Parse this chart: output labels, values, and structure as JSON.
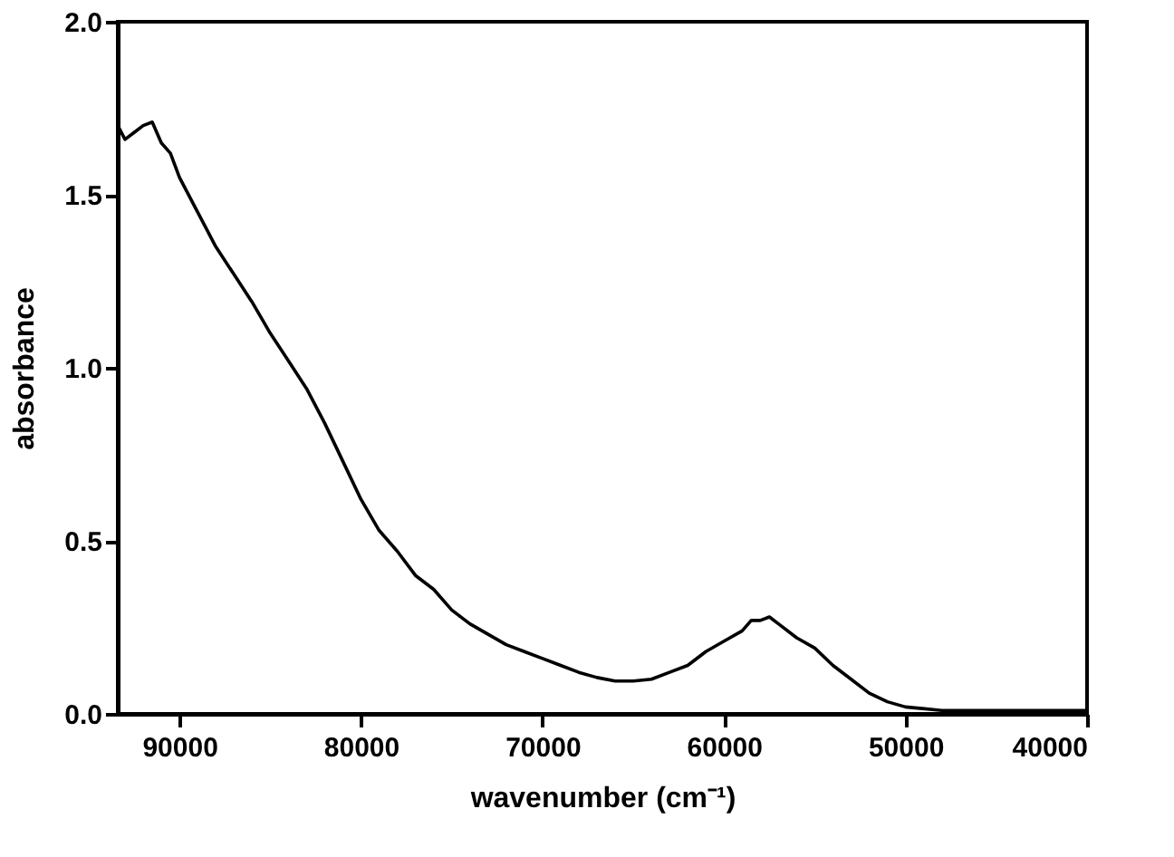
{
  "chart_data": {
    "type": "line",
    "xlabel": "wavenumber (cm⁻¹)",
    "ylabel": "absorbance",
    "x": [
      93400,
      93000,
      92500,
      92000,
      91500,
      91000,
      90500,
      90000,
      89000,
      88000,
      87000,
      86000,
      85000,
      84000,
      83000,
      82000,
      81000,
      80000,
      79000,
      78000,
      77000,
      76000,
      75000,
      74000,
      73000,
      72000,
      71000,
      70000,
      69000,
      68000,
      67000,
      66000,
      65000,
      64000,
      63000,
      62000,
      61000,
      60000,
      59000,
      58500,
      58000,
      57500,
      57000,
      56000,
      55000,
      54000,
      53000,
      52000,
      51000,
      50000,
      48000,
      45000,
      40000
    ],
    "series": [
      {
        "color": "#000000",
        "values": [
          1.7,
          1.66,
          1.68,
          1.7,
          1.71,
          1.65,
          1.62,
          1.55,
          1.45,
          1.35,
          1.27,
          1.19,
          1.1,
          1.02,
          0.94,
          0.84,
          0.73,
          0.62,
          0.53,
          0.47,
          0.4,
          0.36,
          0.3,
          0.26,
          0.23,
          0.2,
          0.18,
          0.16,
          0.14,
          0.12,
          0.105,
          0.095,
          0.095,
          0.1,
          0.12,
          0.14,
          0.18,
          0.21,
          0.24,
          0.27,
          0.27,
          0.28,
          0.26,
          0.22,
          0.19,
          0.14,
          0.1,
          0.06,
          0.035,
          0.02,
          0.01,
          0.01,
          0.01
        ]
      }
    ],
    "xlim": [
      93400,
      40000
    ],
    "xticks": [
      90000,
      80000,
      70000,
      60000,
      50000,
      40000
    ],
    "ylim": [
      0,
      2.0
    ],
    "yticks": [
      {
        "value": 0,
        "label": "0.0"
      },
      {
        "value": 0.5,
        "label": "0.5"
      },
      {
        "value": 1.0,
        "label": "1.0"
      },
      {
        "value": 1.5,
        "label": "1.5"
      },
      {
        "value": 2.0,
        "label": "2.0"
      }
    ],
    "grid": false,
    "legend": false,
    "marker": "none",
    "line_style": "solid"
  }
}
